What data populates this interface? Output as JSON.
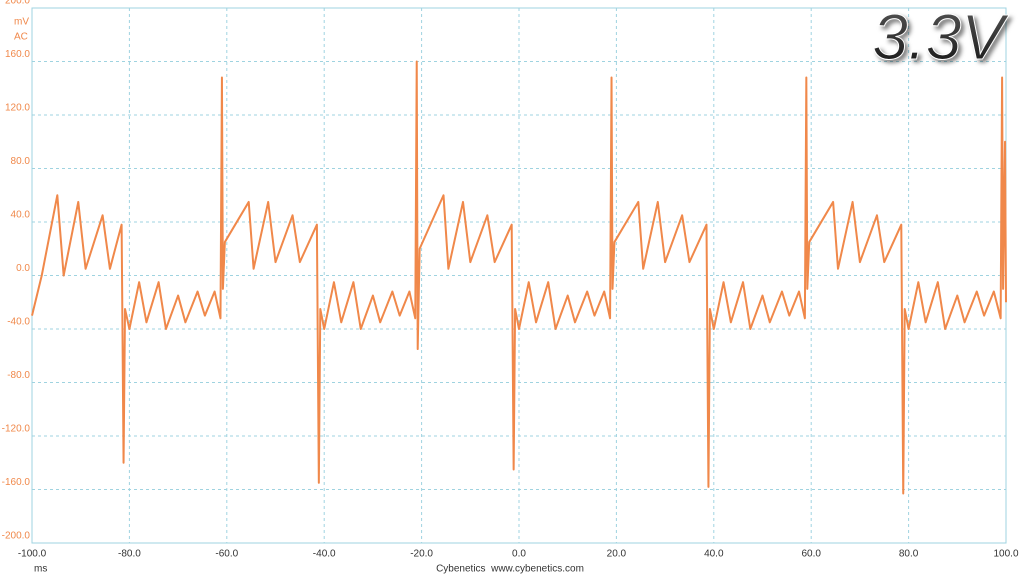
{
  "chart_data": {
    "type": "line",
    "title": "3.3V",
    "y_unit": "mV",
    "coupling": "AC",
    "x_unit": "ms",
    "footer": "Cybenetics  www.cybenetics.com",
    "xlim": [
      -100,
      100
    ],
    "xticks": [
      {
        "value": -100,
        "label": "-100.0"
      },
      {
        "value": -80,
        "label": "-80.0"
      },
      {
        "value": -60,
        "label": "-60.0"
      },
      {
        "value": -40,
        "label": "-40.0"
      },
      {
        "value": -20,
        "label": "-20.0"
      },
      {
        "value": 0,
        "label": "0.0"
      },
      {
        "value": 20,
        "label": "20.0"
      },
      {
        "value": 40,
        "label": "40.0"
      },
      {
        "value": 60,
        "label": "60.0"
      },
      {
        "value": 80,
        "label": "80.0"
      },
      {
        "value": 100,
        "label": "100.0"
      }
    ],
    "ylim": [
      -200,
      200
    ],
    "yticks": [
      {
        "value": -200,
        "label": "-200.0"
      },
      {
        "value": -160,
        "label": "-160.0"
      },
      {
        "value": -120,
        "label": "-120.0"
      },
      {
        "value": -80,
        "label": "-80.0"
      },
      {
        "value": -40,
        "label": "-40.0"
      },
      {
        "value": 0,
        "label": "0.0"
      },
      {
        "value": 40,
        "label": "40.0"
      },
      {
        "value": 80,
        "label": "80.0"
      },
      {
        "value": 120,
        "label": "120.0"
      },
      {
        "value": 160,
        "label": "160.0"
      },
      {
        "value": 200,
        "label": "200.0"
      }
    ],
    "grid": true,
    "series": [
      {
        "color": "#f0884a",
        "x": [
          -100,
          -98,
          -94.8,
          -93.5,
          -90.5,
          -89,
          -85.5,
          -84,
          -81.6,
          -81.2,
          -80.9,
          -80,
          -78,
          -76.5,
          -74,
          -72.5,
          -70,
          -68.5,
          -66,
          -64.5,
          -62.5,
          -61.3,
          -61,
          -60.8,
          -60.4,
          -55.5,
          -54.5,
          -51.5,
          -50,
          -46.5,
          -45,
          -41.5,
          -41.1,
          -40.8,
          -40,
          -38,
          -36.5,
          -34,
          -32.5,
          -30,
          -28.5,
          -26,
          -24.5,
          -22.5,
          -21.3,
          -21,
          -20.8,
          -20.4,
          -15.5,
          -14.5,
          -11.5,
          -10,
          -6.5,
          -5,
          -1.5,
          -1.1,
          -0.8,
          0,
          2,
          3.5,
          6,
          7.5,
          10,
          11.5,
          14,
          15.5,
          17.5,
          18.7,
          19,
          19.2,
          19.6,
          24.5,
          25.5,
          28.5,
          30,
          33.5,
          35,
          38.5,
          38.9,
          39.2,
          40,
          42,
          43.5,
          46,
          47.5,
          50,
          51.5,
          54,
          55.5,
          57.5,
          58.7,
          59,
          59.2,
          59.6,
          64.5,
          65.5,
          68.5,
          70,
          73.5,
          75,
          78.5,
          78.9,
          79.2,
          80,
          82,
          83.5,
          86,
          87.5,
          90,
          91.5,
          94,
          95.5,
          97.5,
          98.9,
          99.2,
          99.4,
          99.8,
          100
        ],
        "values": [
          -30,
          0,
          60,
          0,
          55,
          5,
          45,
          5,
          38,
          -140,
          -25,
          -40,
          -5,
          -35,
          -5,
          -40,
          -15,
          -35,
          -12,
          -30,
          -12,
          -32,
          148,
          -10,
          25,
          55,
          5,
          55,
          10,
          45,
          10,
          38,
          -155,
          -25,
          -40,
          -5,
          -35,
          -5,
          -40,
          -15,
          -35,
          -12,
          -30,
          -12,
          -32,
          160,
          -55,
          20,
          60,
          5,
          55,
          10,
          45,
          10,
          38,
          -145,
          -25,
          -40,
          -5,
          -35,
          -5,
          -40,
          -15,
          -35,
          -12,
          -30,
          -12,
          -32,
          148,
          -10,
          25,
          55,
          5,
          55,
          10,
          45,
          10,
          38,
          -158,
          -25,
          -40,
          -5,
          -35,
          -5,
          -40,
          -15,
          -35,
          -12,
          -30,
          -12,
          -32,
          148,
          -10,
          25,
          55,
          5,
          55,
          10,
          45,
          10,
          38,
          -163,
          -25,
          -40,
          -5,
          -35,
          -5,
          -40,
          -15,
          -35,
          -12,
          -30,
          -12,
          -32,
          148,
          -10,
          100,
          -20
        ]
      }
    ]
  }
}
